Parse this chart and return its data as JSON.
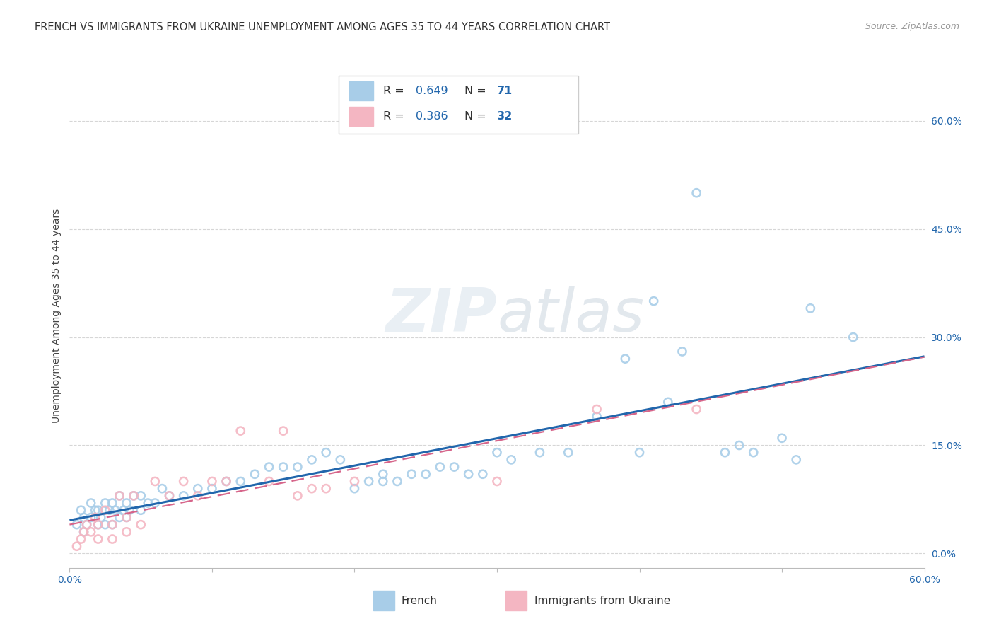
{
  "title": "FRENCH VS IMMIGRANTS FROM UKRAINE UNEMPLOYMENT AMONG AGES 35 TO 44 YEARS CORRELATION CHART",
  "source": "Source: ZipAtlas.com",
  "ylabel": "Unemployment Among Ages 35 to 44 years",
  "xlim": [
    0.0,
    0.6
  ],
  "ylim": [
    -0.02,
    0.68
  ],
  "ytick_labels": [
    "0.0%",
    "15.0%",
    "30.0%",
    "45.0%",
    "60.0%"
  ],
  "ytick_values": [
    0.0,
    0.15,
    0.3,
    0.45,
    0.6
  ],
  "xtick_values": [
    0.0,
    0.1,
    0.2,
    0.3,
    0.4,
    0.5,
    0.6
  ],
  "french_R": "0.649",
  "french_N": "71",
  "ukraine_R": "0.386",
  "ukraine_N": "32",
  "legend_french": "French",
  "legend_ukraine": "Immigrants from Ukraine",
  "french_marker_color": "#a8cde8",
  "french_line_color": "#2166ac",
  "ukraine_marker_color": "#f4b6c2",
  "ukraine_line_color": "#d6658a",
  "french_scatter_x": [
    0.005,
    0.008,
    0.01,
    0.01,
    0.012,
    0.015,
    0.015,
    0.018,
    0.02,
    0.02,
    0.022,
    0.025,
    0.025,
    0.028,
    0.03,
    0.03,
    0.032,
    0.035,
    0.035,
    0.038,
    0.04,
    0.04,
    0.042,
    0.045,
    0.05,
    0.05,
    0.055,
    0.06,
    0.065,
    0.07,
    0.08,
    0.09,
    0.1,
    0.11,
    0.12,
    0.13,
    0.14,
    0.15,
    0.16,
    0.17,
    0.18,
    0.19,
    0.2,
    0.21,
    0.22,
    0.22,
    0.23,
    0.24,
    0.25,
    0.26,
    0.27,
    0.28,
    0.29,
    0.3,
    0.31,
    0.33,
    0.35,
    0.37,
    0.39,
    0.4,
    0.41,
    0.42,
    0.43,
    0.44,
    0.46,
    0.47,
    0.48,
    0.5,
    0.51,
    0.52,
    0.55
  ],
  "french_scatter_y": [
    0.04,
    0.06,
    0.03,
    0.05,
    0.04,
    0.05,
    0.07,
    0.06,
    0.04,
    0.06,
    0.05,
    0.04,
    0.07,
    0.06,
    0.04,
    0.07,
    0.06,
    0.05,
    0.08,
    0.06,
    0.05,
    0.07,
    0.06,
    0.08,
    0.06,
    0.08,
    0.07,
    0.07,
    0.09,
    0.08,
    0.08,
    0.09,
    0.09,
    0.1,
    0.1,
    0.11,
    0.12,
    0.12,
    0.12,
    0.13,
    0.14,
    0.13,
    0.09,
    0.1,
    0.1,
    0.11,
    0.1,
    0.11,
    0.11,
    0.12,
    0.12,
    0.11,
    0.11,
    0.14,
    0.13,
    0.14,
    0.14,
    0.19,
    0.27,
    0.14,
    0.35,
    0.21,
    0.28,
    0.5,
    0.14,
    0.15,
    0.14,
    0.16,
    0.13,
    0.34,
    0.3
  ],
  "ukraine_scatter_x": [
    0.005,
    0.008,
    0.01,
    0.012,
    0.015,
    0.018,
    0.02,
    0.02,
    0.025,
    0.03,
    0.03,
    0.035,
    0.04,
    0.04,
    0.045,
    0.05,
    0.06,
    0.07,
    0.08,
    0.09,
    0.1,
    0.11,
    0.12,
    0.14,
    0.15,
    0.16,
    0.17,
    0.18,
    0.2,
    0.3,
    0.37,
    0.44
  ],
  "ukraine_scatter_y": [
    0.01,
    0.02,
    0.03,
    0.04,
    0.03,
    0.05,
    0.02,
    0.04,
    0.06,
    0.02,
    0.04,
    0.08,
    0.03,
    0.05,
    0.08,
    0.04,
    0.1,
    0.08,
    0.1,
    0.08,
    0.1,
    0.1,
    0.17,
    0.1,
    0.17,
    0.08,
    0.09,
    0.09,
    0.1,
    0.1,
    0.2,
    0.2
  ],
  "grid_color": "#cccccc",
  "background_color": "#ffffff",
  "title_fontsize": 10.5,
  "axis_label_fontsize": 10,
  "tick_fontsize": 10
}
